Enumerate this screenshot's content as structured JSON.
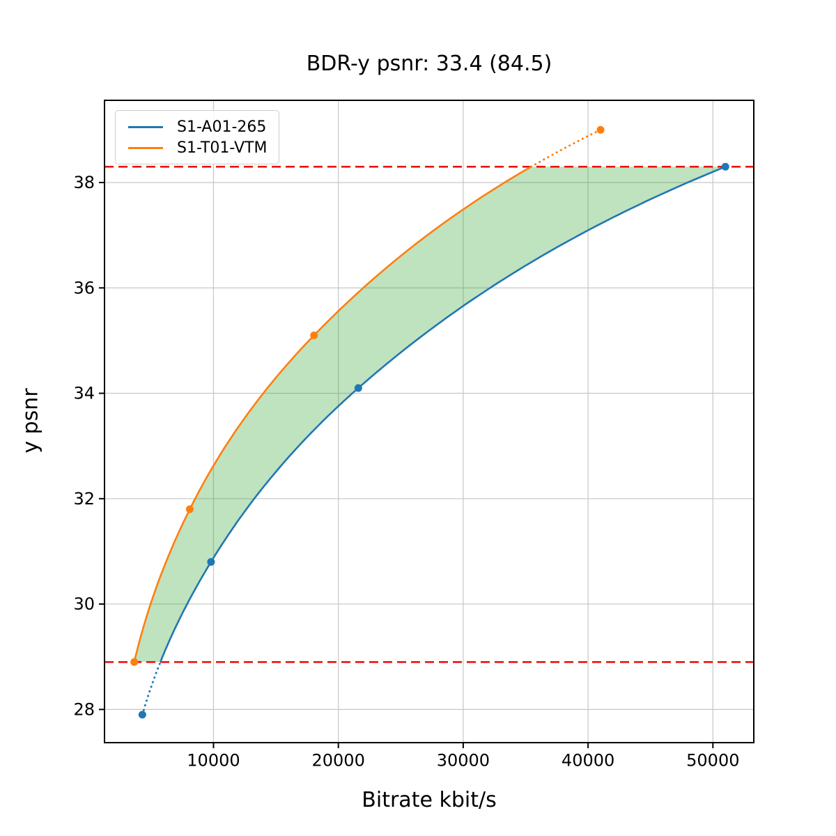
{
  "chart_data": {
    "type": "line",
    "title": "BDR-y psnr: 33.4 (84.5)",
    "xlabel": "Bitrate kbit/s",
    "ylabel": "y psnr",
    "bdr_value": 33.4,
    "bdr_percent": 84.5,
    "xlim": [
      1269,
      53274
    ],
    "ylim": [
      27.37,
      39.56
    ],
    "x_ticks": [
      10000,
      20000,
      30000,
      40000,
      50000
    ],
    "x_tick_labels": [
      "10000",
      "20000",
      "30000",
      "40000",
      "50000"
    ],
    "y_ticks": [
      28,
      30,
      32,
      34,
      36,
      38
    ],
    "y_tick_labels": [
      "28",
      "30",
      "32",
      "34",
      "36",
      "38"
    ],
    "grid": true,
    "grid_color": "#c6c6c6",
    "legend_position": "upper left",
    "series": [
      {
        "name": "S1-A01-265",
        "color": "#1f77b4",
        "x": [
          4300,
          9800,
          21600,
          51000
        ],
        "y": [
          27.9,
          30.8,
          34.1,
          38.3
        ]
      },
      {
        "name": "S1-T01-VTM",
        "color": "#ff7f0e",
        "x": [
          3650,
          8100,
          18050,
          41000
        ],
        "y": [
          28.9,
          31.8,
          35.1,
          39.0
        ]
      }
    ],
    "reference_lines": [
      {
        "y": 38.3,
        "color": "#ee1111",
        "style": "dashed",
        "meaning": "upper overlap psnr bound"
      },
      {
        "y": 28.9,
        "color": "#ee1111",
        "style": "dashed",
        "meaning": "lower overlap psnr bound"
      }
    ],
    "shaded_region": {
      "color": "#2ca02c",
      "opacity": 0.3,
      "description": "area between the two rate-distortion curves inside the overlap psnr interval"
    }
  }
}
